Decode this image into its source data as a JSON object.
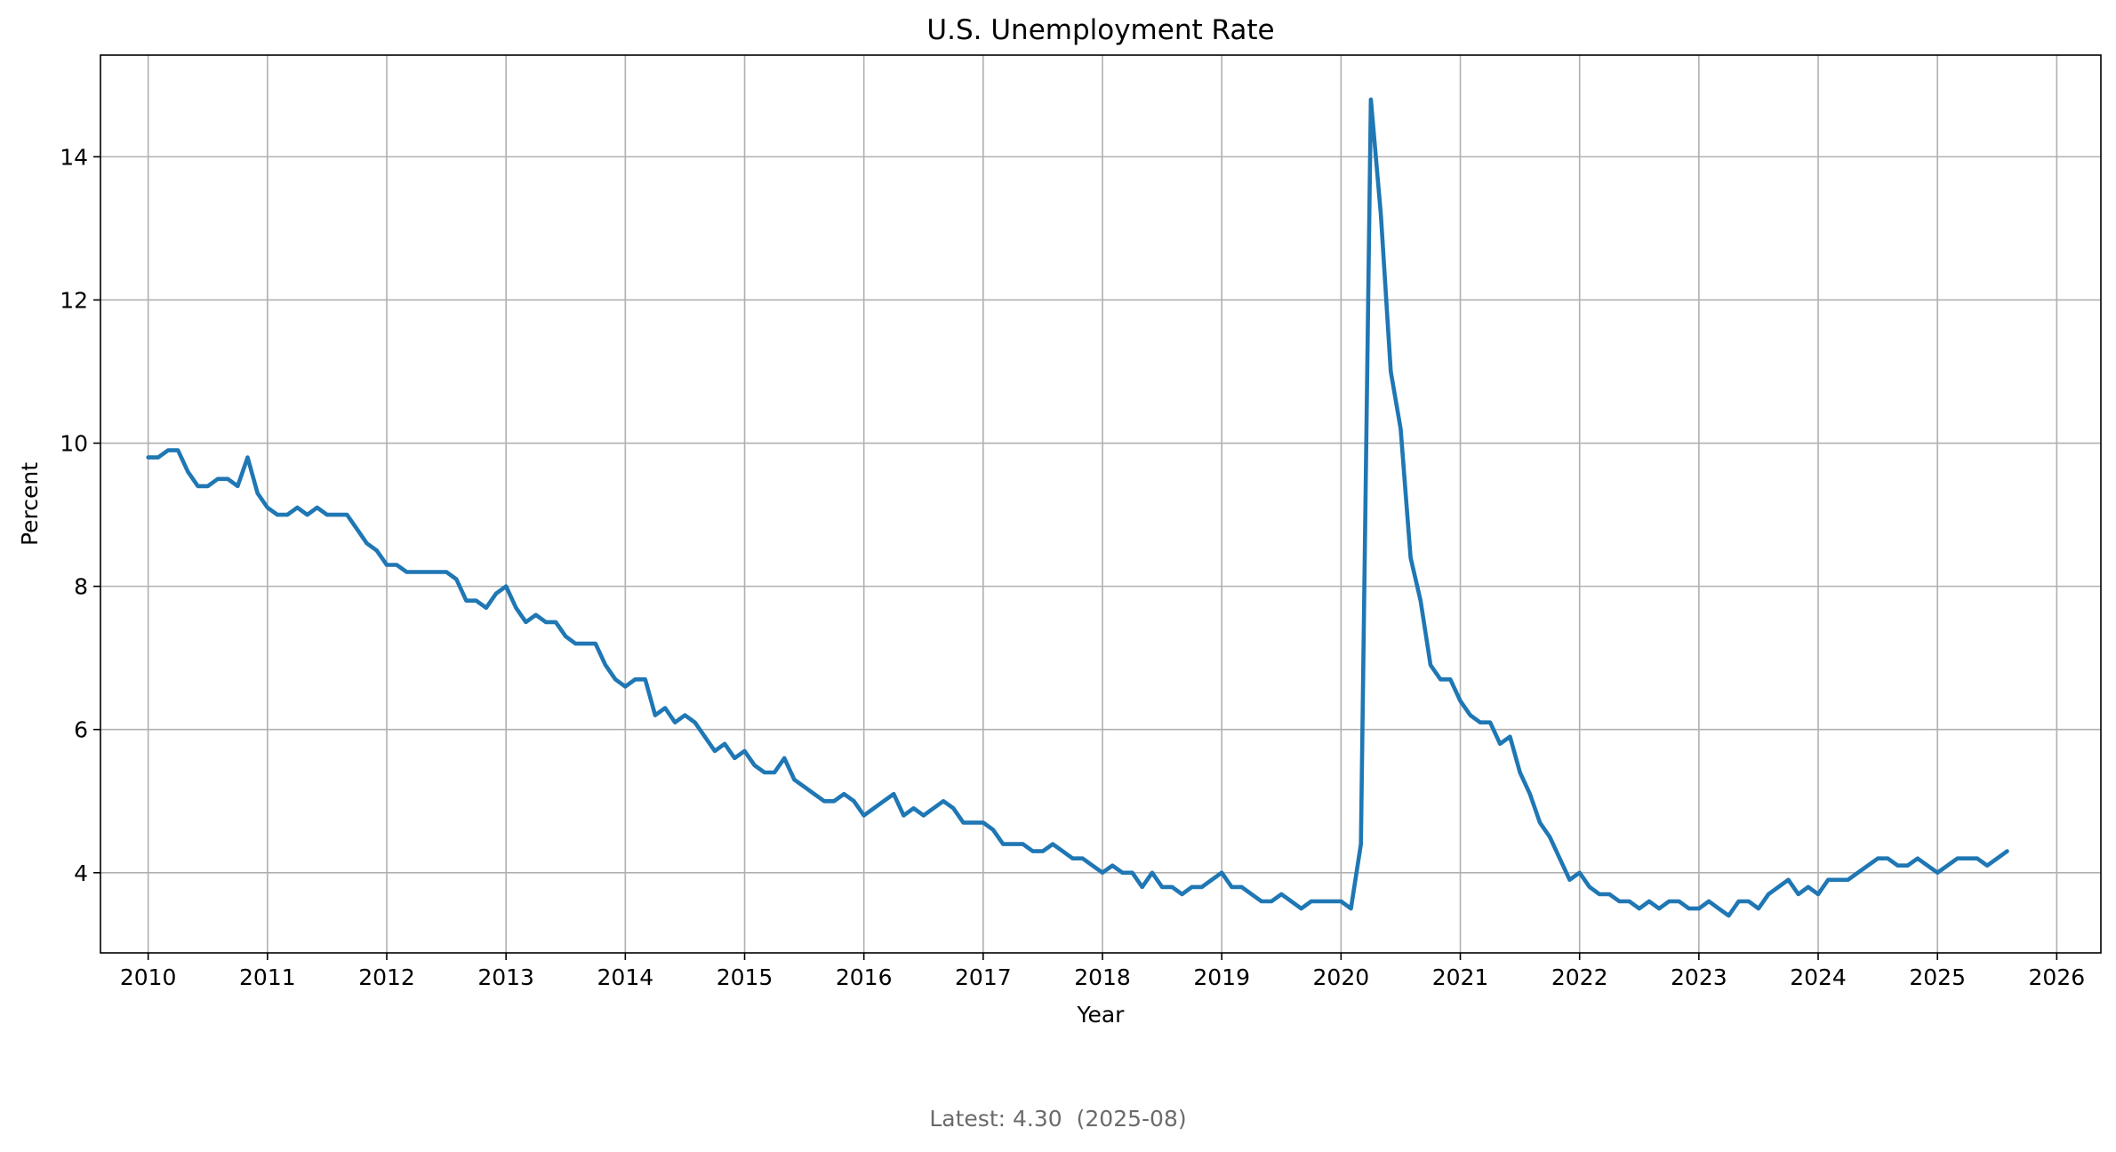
{
  "colors": {
    "series": "#1f77b4",
    "grid": "#b0b0b0",
    "footnote": "#6b6b6b"
  },
  "footnote": {
    "label": "Latest:",
    "value": "4.30",
    "date": "(2025-08)"
  },
  "chart_data": {
    "type": "line",
    "title": "U.S. Unemployment Rate",
    "xlabel": "Year",
    "ylabel": "Percent",
    "xlim": [
      2009.6,
      2026.37
    ],
    "ylim": [
      2.88,
      15.42
    ],
    "grid": true,
    "xticks": [
      "2010",
      "2011",
      "2012",
      "2013",
      "2014",
      "2015",
      "2016",
      "2017",
      "2018",
      "2019",
      "2020",
      "2021",
      "2022",
      "2023",
      "2024",
      "2025",
      "2026"
    ],
    "yticks": [
      "4",
      "6",
      "8",
      "10",
      "12",
      "14"
    ],
    "series": [
      {
        "start": "2010-01",
        "frequency": "monthly",
        "values": [
          9.8,
          9.8,
          9.9,
          9.9,
          9.6,
          9.4,
          9.4,
          9.5,
          9.5,
          9.4,
          9.8,
          9.3,
          9.1,
          9.0,
          9.0,
          9.1,
          9.0,
          9.1,
          9.0,
          9.0,
          9.0,
          8.8,
          8.6,
          8.5,
          8.3,
          8.3,
          8.2,
          8.2,
          8.2,
          8.2,
          8.2,
          8.1,
          7.8,
          7.8,
          7.7,
          7.9,
          8.0,
          7.7,
          7.5,
          7.6,
          7.5,
          7.5,
          7.3,
          7.2,
          7.2,
          7.2,
          6.9,
          6.7,
          6.6,
          6.7,
          6.7,
          6.2,
          6.3,
          6.1,
          6.2,
          6.1,
          5.9,
          5.7,
          5.8,
          5.6,
          5.7,
          5.5,
          5.4,
          5.4,
          5.6,
          5.3,
          5.2,
          5.1,
          5.0,
          5.0,
          5.1,
          5.0,
          4.8,
          4.9,
          5.0,
          5.1,
          4.8,
          4.9,
          4.8,
          4.9,
          5.0,
          4.9,
          4.7,
          4.7,
          4.7,
          4.6,
          4.4,
          4.4,
          4.4,
          4.3,
          4.3,
          4.4,
          4.3,
          4.2,
          4.2,
          4.1,
          4.0,
          4.1,
          4.0,
          4.0,
          3.8,
          4.0,
          3.8,
          3.8,
          3.7,
          3.8,
          3.8,
          3.9,
          4.0,
          3.8,
          3.8,
          3.7,
          3.6,
          3.6,
          3.7,
          3.6,
          3.5,
          3.6,
          3.6,
          3.6,
          3.6,
          3.5,
          4.4,
          14.8,
          13.2,
          11.0,
          10.2,
          8.4,
          7.8,
          6.9,
          6.7,
          6.7,
          6.4,
          6.2,
          6.1,
          6.1,
          5.8,
          5.9,
          5.4,
          5.1,
          4.7,
          4.5,
          4.2,
          3.9,
          4.0,
          3.8,
          3.7,
          3.7,
          3.6,
          3.6,
          3.5,
          3.6,
          3.5,
          3.6,
          3.6,
          3.5,
          3.5,
          3.6,
          3.5,
          3.4,
          3.6,
          3.6,
          3.5,
          3.7,
          3.8,
          3.9,
          3.7,
          3.8,
          3.7,
          3.9,
          3.9,
          3.9,
          4.0,
          4.1,
          4.2,
          4.2,
          4.1,
          4.1,
          4.2,
          4.1,
          4.0,
          4.1,
          4.2,
          4.2,
          4.2,
          4.1,
          4.2,
          4.3
        ]
      }
    ]
  }
}
